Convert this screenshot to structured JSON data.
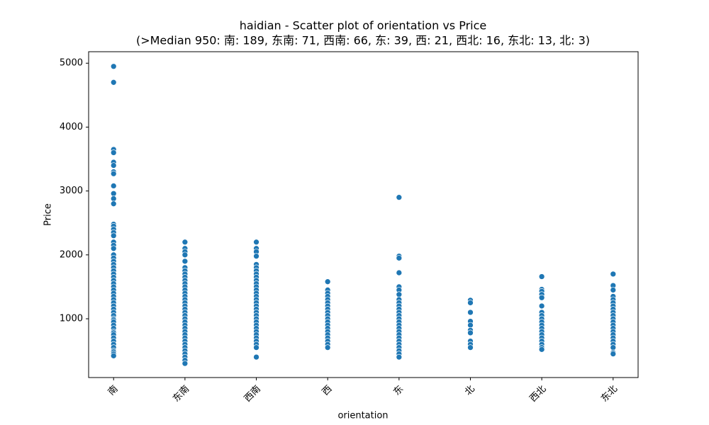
{
  "chart_data": {
    "type": "scatter",
    "title": "haidian - Scatter plot of orientation vs Price",
    "subtitle": "(>Median 950: 南: 189, 东南: 71, 西南: 66, 东: 39, 西: 21, 西北: 16, 东北: 13, 北: 3)",
    "x_label": "orientation",
    "y_label": "Price",
    "categories": [
      "南",
      "东南",
      "西南",
      "西",
      "东",
      "北",
      "西北",
      "东北"
    ],
    "values": [
      [
        4950,
        4700,
        3650,
        3600,
        3450,
        3400,
        3300,
        3270,
        3080,
        2960,
        2880,
        2800,
        2480,
        2450,
        2400,
        2350,
        2300,
        2200,
        2150,
        2100,
        2000,
        1950,
        1900,
        1850,
        1800,
        1750,
        1700,
        1650,
        1600,
        1550,
        1500,
        1450,
        1400,
        1350,
        1300,
        1250,
        1200,
        1150,
        1100,
        1050,
        1000,
        980,
        950,
        900,
        850,
        800,
        780,
        750,
        700,
        650,
        600,
        550,
        500,
        480,
        450,
        420
      ],
      [
        2200,
        2100,
        2050,
        2000,
        1900,
        1800,
        1750,
        1700,
        1650,
        1600,
        1550,
        1500,
        1450,
        1400,
        1350,
        1300,
        1250,
        1200,
        1150,
        1100,
        1050,
        1000,
        950,
        900,
        850,
        800,
        750,
        700,
        650,
        600,
        550,
        500,
        450,
        400,
        350,
        300
      ],
      [
        2200,
        2100,
        2050,
        1980,
        1850,
        1800,
        1750,
        1700,
        1650,
        1600,
        1550,
        1500,
        1450,
        1400,
        1350,
        1300,
        1250,
        1200,
        1150,
        1100,
        1050,
        1000,
        950,
        900,
        850,
        800,
        750,
        700,
        650,
        600,
        550,
        400
      ],
      [
        1580,
        1450,
        1400,
        1350,
        1300,
        1250,
        1200,
        1150,
        1100,
        1050,
        1000,
        950,
        900,
        850,
        800,
        750,
        700,
        650,
        600,
        550
      ],
      [
        2900,
        1980,
        1950,
        1720,
        1500,
        1450,
        1380,
        1300,
        1250,
        1200,
        1150,
        1100,
        1050,
        1000,
        950,
        900,
        850,
        800,
        750,
        700,
        650,
        600,
        550,
        500,
        450,
        400
      ],
      [
        1290,
        1250,
        1100,
        960,
        900,
        820,
        780,
        650,
        600,
        550
      ],
      [
        1660,
        1460,
        1430,
        1380,
        1330,
        1200,
        1100,
        1050,
        1000,
        950,
        900,
        850,
        800,
        750,
        700,
        650,
        600,
        550,
        520
      ],
      [
        1700,
        1520,
        1450,
        1350,
        1300,
        1250,
        1200,
        1150,
        1100,
        1050,
        1000,
        950,
        900,
        850,
        800,
        750,
        700,
        650,
        600,
        550,
        470,
        450
      ]
    ],
    "color": "#1f77b4",
    "ylim": [
      80,
      5180
    ],
    "yticks": [
      1000,
      2000,
      3000,
      4000,
      5000
    ],
    "grid": false
  }
}
